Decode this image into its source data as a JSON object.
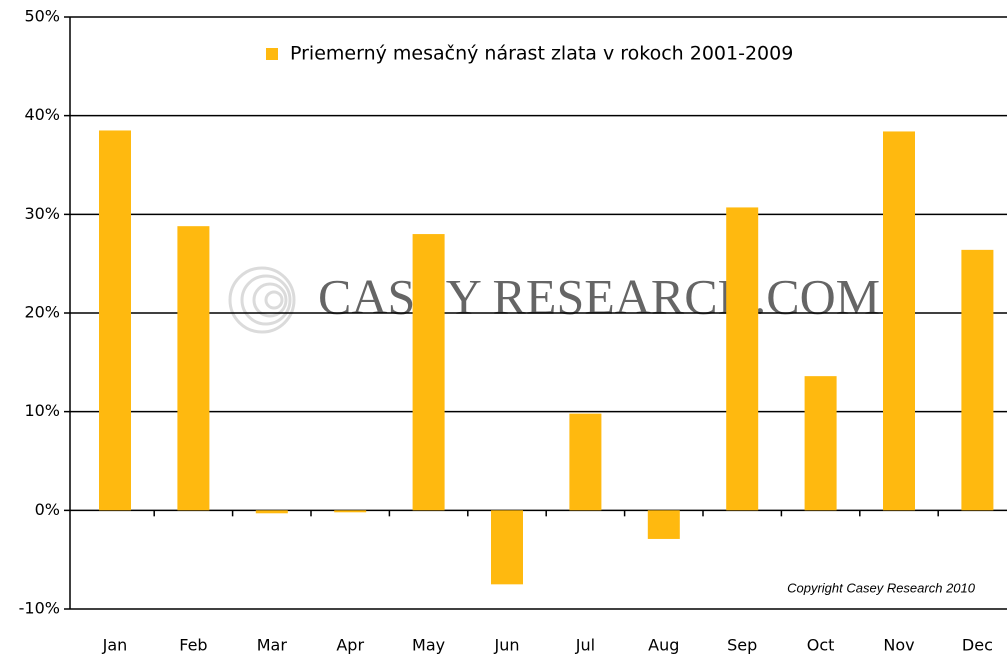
{
  "chart_data": {
    "type": "bar",
    "categories": [
      "Jan",
      "Feb",
      "Mar",
      "Apr",
      "May",
      "Jun",
      "Jul",
      "Aug",
      "Sep",
      "Oct",
      "Nov",
      "Dec"
    ],
    "series": [
      {
        "name": "Priemerný mesačný nárast zlata v rokoch 2001-2009",
        "color": "#ffb90f",
        "values": [
          38.5,
          28.8,
          -0.3,
          -0.2,
          28.0,
          -7.5,
          9.8,
          -2.9,
          30.7,
          13.6,
          38.4,
          26.4
        ]
      }
    ],
    "ylim": [
      -10,
      50
    ],
    "yticks": [
      {
        "value": -10,
        "label": "-10%"
      },
      {
        "value": 0,
        "label": "0%"
      },
      {
        "value": 10,
        "label": "10%"
      },
      {
        "value": 20,
        "label": "20%"
      },
      {
        "value": 30,
        "label": "30%"
      },
      {
        "value": 40,
        "label": "40%"
      },
      {
        "value": 50,
        "label": "50%"
      }
    ],
    "grid": true,
    "legend": "top",
    "watermark": "CASEY RESEARCH.COM",
    "annotation": "Copyright Casey Research 2010"
  }
}
